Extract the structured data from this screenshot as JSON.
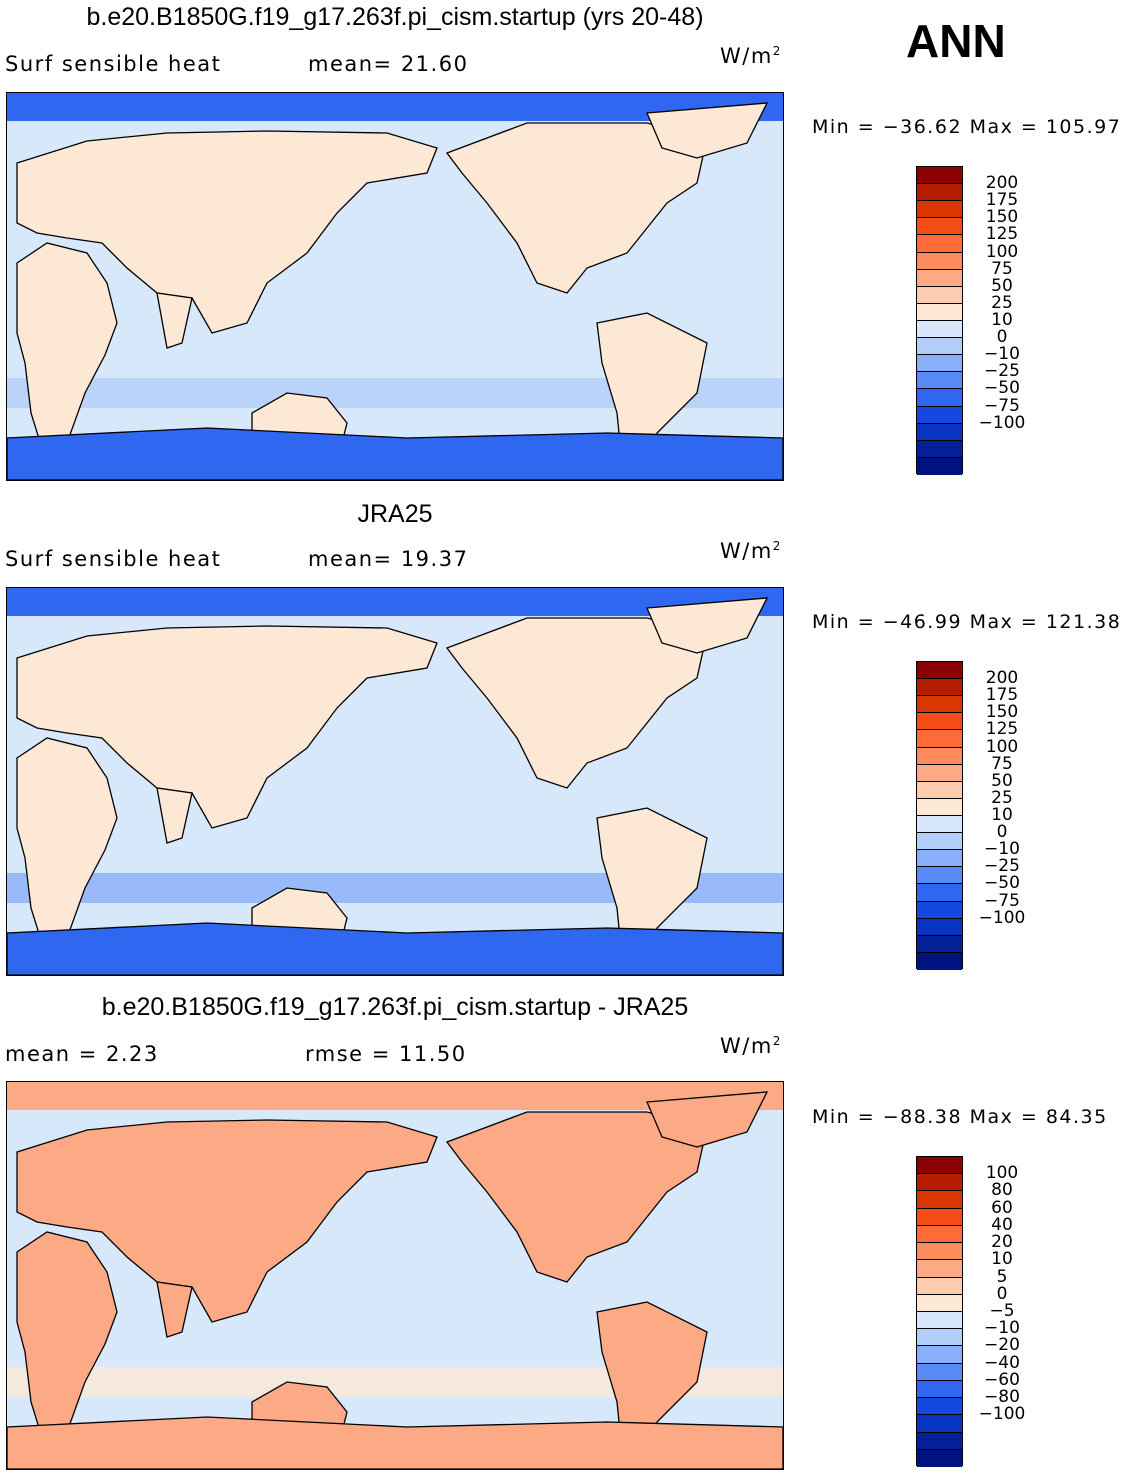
{
  "season": "ANN",
  "panels": [
    {
      "title": "b.e20.B1850G.f19_g17.263f.pi_cism.startup (yrs 20-48)",
      "left_label": "Surf  sensible  heat",
      "center_label": "mean=   21.60",
      "units": "W/m",
      "units_exp": "2",
      "minmax": "Min  =  −36.62  Max  =  105.97",
      "colorbar": {
        "labels": [
          "200",
          "175",
          "150",
          "125",
          "100",
          "75",
          "50",
          "25",
          "10",
          "0",
          "−10",
          "−25",
          "−50",
          "−75",
          "−100"
        ],
        "colors": [
          "#8b0000",
          "#b51d00",
          "#d93600",
          "#f24d14",
          "#fd6b36",
          "#fc8a5a",
          "#fcaa85",
          "#fdcbb0",
          "#fde8d6",
          "#d8e8fb",
          "#b3cdf9",
          "#8aaef7",
          "#5a8af5",
          "#2f67f0",
          "#1449e0",
          "#0934c0",
          "#051f98",
          "#001180"
        ]
      }
    },
    {
      "title": "JRA25",
      "left_label": "Surf  sensible  heat",
      "center_label": "mean=   19.37",
      "units": "W/m",
      "units_exp": "2",
      "minmax": "Min  =  −46.99  Max  =  121.38",
      "colorbar": {
        "labels": [
          "200",
          "175",
          "150",
          "125",
          "100",
          "75",
          "50",
          "25",
          "10",
          "0",
          "−10",
          "−25",
          "−50",
          "−75",
          "−100"
        ],
        "colors": [
          "#8b0000",
          "#b51d00",
          "#d93600",
          "#f24d14",
          "#fd6b36",
          "#fc8a5a",
          "#fcaa85",
          "#fdcbb0",
          "#fde8d6",
          "#d8e8fb",
          "#b3cdf9",
          "#8aaef7",
          "#5a8af5",
          "#2f67f0",
          "#1449e0",
          "#0934c0",
          "#051f98",
          "#001180"
        ]
      }
    },
    {
      "title": "b.e20.B1850G.f19_g17.263f.pi_cism.startup - JRA25",
      "left_label": "mean  =      2.23",
      "center_label": "rmse  =     11.50",
      "units": "W/m",
      "units_exp": "2",
      "minmax": "Min  =  −88.38  Max  =    84.35",
      "colorbar": {
        "labels": [
          "100",
          "80",
          "60",
          "40",
          "20",
          "10",
          "5",
          "0",
          "−5",
          "−10",
          "−20",
          "−40",
          "−60",
          "−80",
          "−100"
        ],
        "colors": [
          "#8b0000",
          "#b51d00",
          "#d93600",
          "#f24d14",
          "#fd6b36",
          "#fc8a5a",
          "#fcaa85",
          "#fdcbb0",
          "#fde8d6",
          "#d8e8fb",
          "#b3cdf9",
          "#8aaef7",
          "#5a8af5",
          "#2f67f0",
          "#1449e0",
          "#0934c0",
          "#051f98",
          "#001180"
        ]
      }
    }
  ],
  "map_colors": {
    "ocean_mid": "#d8e8fb",
    "warm_light": "#fde8d6",
    "warm_mid": "#fcaa85",
    "warm_strong": "#fd6b36",
    "cool_light": "#b3cdf9",
    "cool_mid": "#8aaef7",
    "cool_strong": "#2f67f0",
    "coast": "#000000"
  }
}
